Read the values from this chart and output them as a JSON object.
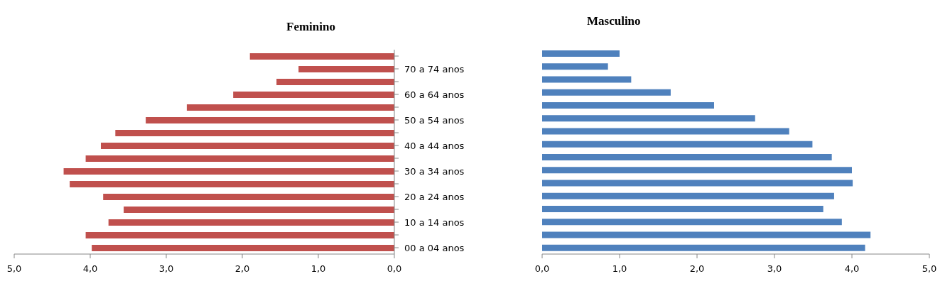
{
  "chart_data": [
    {
      "type": "bar",
      "title": "Feminino",
      "orientation": "horizontal",
      "categories": [
        null,
        "70 a 74 anos",
        null,
        "60 a 64 anos",
        null,
        "50 a 54 anos",
        null,
        "40 a 44 anos",
        null,
        "30 a 34 anos",
        null,
        "20 a 24 anos",
        null,
        "10 a 14 anos",
        null,
        "00 a 04 anos"
      ],
      "values": [
        1.9,
        1.26,
        1.55,
        2.12,
        2.73,
        3.27,
        3.67,
        3.86,
        4.06,
        4.35,
        4.27,
        3.83,
        3.56,
        3.76,
        4.06,
        3.98
      ],
      "color": "#c0504d",
      "xlim": [
        5,
        0
      ],
      "xticks": [
        {
          "value": 5,
          "label": "5,0"
        },
        {
          "value": 4,
          "label": "4,0"
        },
        {
          "value": 3,
          "label": "3,0"
        },
        {
          "value": 2,
          "label": "2,0"
        },
        {
          "value": 1,
          "label": "1,0"
        },
        {
          "value": 0,
          "label": "0,0"
        }
      ],
      "grid": false,
      "legend": false
    },
    {
      "type": "bar",
      "title": "Masculino",
      "orientation": "horizontal",
      "categories": [
        null,
        null,
        null,
        null,
        null,
        null,
        null,
        null,
        null,
        null,
        null,
        null,
        null,
        null,
        null,
        null
      ],
      "values": [
        1.0,
        0.85,
        1.15,
        1.66,
        2.22,
        2.75,
        3.19,
        3.49,
        3.74,
        4.0,
        4.01,
        3.77,
        3.63,
        3.87,
        4.24,
        4.17
      ],
      "color": "#4f81bd",
      "xlim": [
        0,
        5
      ],
      "xticks": [
        {
          "value": 0,
          "label": "0,0"
        },
        {
          "value": 1,
          "label": "1,0"
        },
        {
          "value": 2,
          "label": "2,0"
        },
        {
          "value": 3,
          "label": "3,0"
        },
        {
          "value": 4,
          "label": "4,0"
        },
        {
          "value": 5,
          "label": "5,0"
        }
      ],
      "tick_labels": "x",
      "grid": false,
      "legend": false
    }
  ]
}
